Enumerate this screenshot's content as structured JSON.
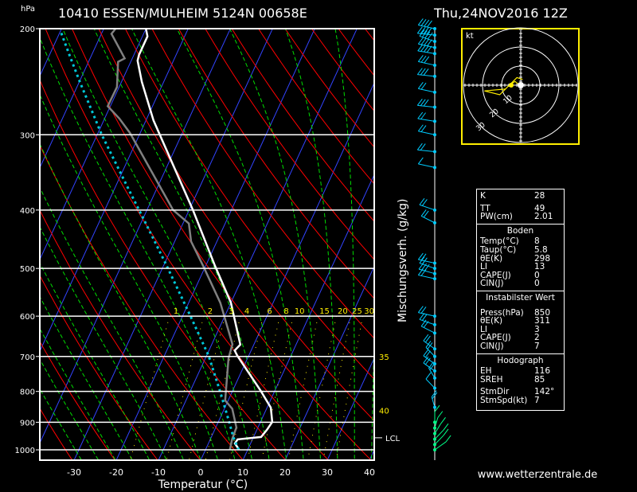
{
  "header": {
    "pressure_unit": "hPa",
    "station": "10410 ESSEN/MULHEIM 5124N 00658E",
    "datetime": "Thu,24NOV2016 12Z"
  },
  "footer": {
    "website": "www.wetterzentrale.de"
  },
  "colors": {
    "isotherm": "#3344ff",
    "dry_adiabat": "#ff0000",
    "moist_adiabat": "#00dd00",
    "mixing_ratio": "#ffee00",
    "temperature": "#ffffff",
    "dewpoint": "#808080",
    "parcel": "#00c8d8",
    "wind": "#00ccff",
    "wind_low": "#00ff88",
    "hodograph": "#ffee00"
  },
  "chart_data": {
    "type": "line",
    "title": "10410 ESSEN/MULHEIM 5124N 00658E",
    "xlabel": "Temperatur (°C)",
    "ylabel": "hPa",
    "right_label": "Mischungsverh. (g/kg)",
    "xlim": [
      -38,
      42
    ],
    "ylim": [
      1050,
      200
    ],
    "x_ticks": [
      -30,
      -20,
      -10,
      0,
      10,
      20,
      30,
      40
    ],
    "y_ticks": [
      200,
      300,
      400,
      500,
      600,
      700,
      800,
      900,
      1000
    ],
    "mixing_ratio_labels": [
      "1",
      "2",
      "3",
      "4",
      "6",
      "8",
      "10",
      "15",
      "20",
      "25",
      "30"
    ],
    "mixing_ratio_values": [
      1,
      2,
      3,
      4,
      6,
      8,
      10,
      15,
      20,
      25,
      30
    ],
    "right_axis_labels": [
      {
        "text": "35",
        "p": 700
      },
      {
        "text": "40",
        "p": 860
      }
    ],
    "lcl_label": "LCL",
    "lcl_pressure": 955,
    "series": [
      {
        "name": "temperature",
        "points": [
          [
            1000,
            8
          ],
          [
            976,
            6.3
          ],
          [
            961,
            6.5
          ],
          [
            952,
            11.8
          ],
          [
            926,
            12.4
          ],
          [
            899,
            12.8
          ],
          [
            851,
            10.9
          ],
          [
            796,
            6.5
          ],
          [
            698,
            -2.7
          ],
          [
            684,
            -3.9
          ],
          [
            669,
            -3.2
          ],
          [
            570,
            -10.0
          ],
          [
            495,
            -17.8
          ],
          [
            400,
            -29.1
          ],
          [
            284,
            -48.2
          ],
          [
            245,
            -55.2
          ],
          [
            226,
            -58.5
          ],
          [
            221,
            -58.8
          ],
          [
            206,
            -58.8
          ],
          [
            200,
            -60.0
          ]
        ]
      },
      {
        "name": "dewpoint",
        "points": [
          [
            1000,
            5.8
          ],
          [
            961,
            5.2
          ],
          [
            918,
            4.9
          ],
          [
            855,
            1.9
          ],
          [
            828,
            -0.7
          ],
          [
            705,
            -4.5
          ],
          [
            668,
            -5.1
          ],
          [
            570,
            -12.5
          ],
          [
            495,
            -20.6
          ],
          [
            451,
            -26.1
          ],
          [
            421,
            -28.6
          ],
          [
            400,
            -33.8
          ],
          [
            298,
            -52.4
          ],
          [
            282,
            -56.5
          ],
          [
            269,
            -60.6
          ],
          [
            250,
            -60.5
          ],
          [
            227,
            -63.0
          ],
          [
            224,
            -61.8
          ],
          [
            204,
            -67.6
          ],
          [
            200,
            -67.2
          ]
        ]
      },
      {
        "name": "parcel",
        "points": [
          [
            1000,
            7.9
          ],
          [
            954,
            5.3
          ],
          [
            899,
            2.6
          ],
          [
            803,
            -2.7
          ],
          [
            698,
            -9.5
          ],
          [
            596,
            -18.5
          ],
          [
            491,
            -29.7
          ],
          [
            421,
            -38.8
          ],
          [
            367,
            -47.0
          ],
          [
            300,
            -58.9
          ],
          [
            244,
            -70.1
          ],
          [
            221,
            -75.3
          ],
          [
            201,
            -80.2
          ]
        ]
      }
    ],
    "winds": [
      [
        200,
        250,
        45
      ],
      [
        205,
        260,
        40
      ],
      [
        210,
        240,
        35
      ],
      [
        215,
        250,
        40
      ],
      [
        220,
        255,
        35
      ],
      [
        230,
        250,
        30
      ],
      [
        240,
        260,
        25
      ],
      [
        255,
        250,
        20
      ],
      [
        270,
        260,
        25
      ],
      [
        285,
        255,
        20
      ],
      [
        300,
        250,
        20
      ],
      [
        320,
        260,
        15
      ],
      [
        340,
        250,
        10
      ],
      [
        400,
        240,
        15
      ],
      [
        420,
        230,
        20
      ],
      [
        490,
        250,
        15
      ],
      [
        500,
        240,
        20
      ],
      [
        510,
        245,
        25
      ],
      [
        520,
        250,
        20
      ],
      [
        600,
        250,
        15
      ],
      [
        620,
        240,
        20
      ],
      [
        640,
        230,
        15
      ],
      [
        680,
        220,
        15
      ],
      [
        700,
        210,
        15
      ],
      [
        720,
        220,
        20
      ],
      [
        740,
        220,
        15
      ],
      [
        760,
        200,
        15
      ],
      [
        790,
        210,
        10
      ],
      [
        850,
        190,
        15
      ],
      [
        900,
        180,
        10
      ],
      [
        920,
        170,
        10
      ],
      [
        940,
        160,
        10
      ],
      [
        960,
        150,
        10
      ],
      [
        980,
        150,
        8
      ],
      [
        1000,
        140,
        7
      ]
    ],
    "hodograph": {
      "unit": "kt",
      "ring_labels": [
        "10",
        "20",
        "30"
      ],
      "trace_uv": [
        [
          0.5,
          -1
        ],
        [
          -3,
          2
        ],
        [
          -6,
          0
        ],
        [
          -11,
          -5
        ],
        [
          -19,
          -3
        ],
        [
          -8,
          -2
        ],
        [
          -2,
          4
        ],
        [
          1,
          3
        ]
      ]
    }
  },
  "info": {
    "indices": [
      {
        "k": "K",
        "v": "28"
      },
      {
        "k": "TT",
        "v": "49"
      },
      {
        "k": "PW(cm)",
        "v": "2.01"
      }
    ],
    "boden": {
      "title": "Boden",
      "rows": [
        {
          "k": "Temp(°C)",
          "v": "8"
        },
        {
          "k": "Taup(°C)",
          "v": "5.8"
        },
        {
          "k": "θE(K)",
          "v": "298"
        },
        {
          "k": "LI",
          "v": "13"
        },
        {
          "k": "CAPE(J)",
          "v": "0"
        },
        {
          "k": "CIN(J)",
          "v": "0"
        }
      ]
    },
    "instabil": {
      "title": "Instabilster Wert",
      "rows": [
        {
          "k": "Press(hPa)",
          "v": "850"
        },
        {
          "k": "θE(K)",
          "v": "311"
        },
        {
          "k": "LI",
          "v": "3"
        },
        {
          "k": "CAPE(J)",
          "v": "2"
        },
        {
          "k": "CIN(J)",
          "v": "7"
        }
      ]
    },
    "hodo": {
      "title": "Hodograph",
      "rows": [
        {
          "k": "EH",
          "v": "116"
        },
        {
          "k": "SREH",
          "v": "85"
        }
      ],
      "rows2": [
        {
          "k": "StmDir",
          "v": "142°"
        },
        {
          "k": "StmSpd(kt)",
          "v": "7"
        }
      ]
    }
  }
}
